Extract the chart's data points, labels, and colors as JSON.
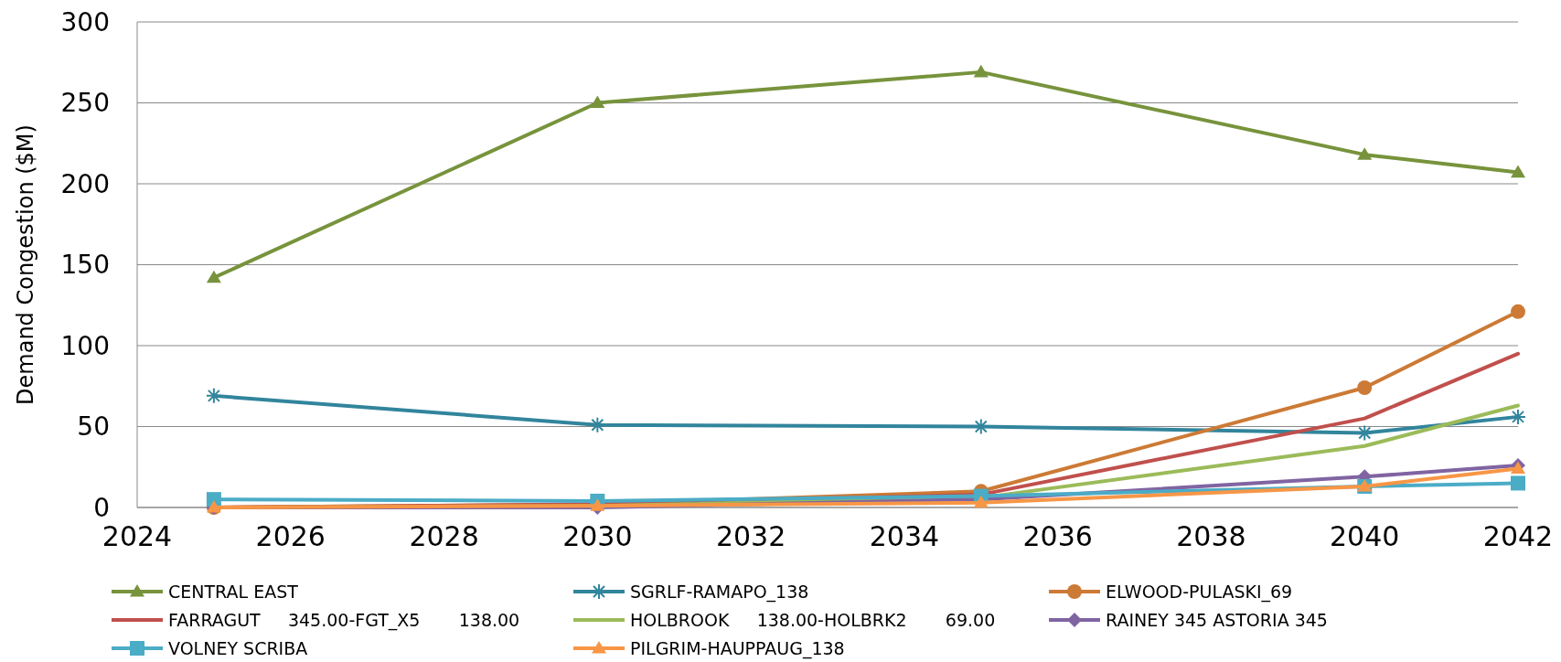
{
  "chart_data": {
    "type": "line",
    "ylabel": "Demand Congestion ($M)",
    "x": [
      2025,
      2030,
      2035,
      2040,
      2042
    ],
    "xlim": [
      2024,
      2042
    ],
    "xticks": [
      2024,
      2026,
      2028,
      2030,
      2032,
      2034,
      2036,
      2038,
      2040,
      2042
    ],
    "ylim": [
      0,
      300
    ],
    "yticks": [
      0,
      50,
      100,
      150,
      200,
      250,
      300
    ],
    "grid": "y",
    "legend": "bottom",
    "series": [
      {
        "name": "CENTRAL EAST",
        "color": "#77933c",
        "marker": "triangle",
        "values": [
          142,
          250,
          269,
          218,
          207
        ]
      },
      {
        "name": "SGRLF-RAMAPO_138",
        "color": "#31859c",
        "marker": "cross",
        "values": [
          69,
          51,
          50,
          46,
          56
        ]
      },
      {
        "name": "ELWOOD-PULASKI_69",
        "color": "#cc7a35",
        "marker": "circle",
        "values": [
          0,
          2,
          10,
          74,
          121
        ]
      },
      {
        "name": "FARRAGUT     345.00-FGT_X5       138.00",
        "color": "#c0504d",
        "marker": "none",
        "values": [
          0,
          2,
          8,
          55,
          95
        ]
      },
      {
        "name": "HOLBROOK     138.00-HOLBRK2       69.00",
        "color": "#9bbb59",
        "marker": "none",
        "values": [
          0,
          1,
          6,
          38,
          63
        ]
      },
      {
        "name": "RAINEY 345 ASTORIA 345",
        "color": "#8064a2",
        "marker": "diamond",
        "values": [
          0,
          0,
          5,
          19,
          26
        ]
      },
      {
        "name": "VOLNEY SCRIBA",
        "color": "#4bacc6",
        "marker": "square",
        "values": [
          5,
          4,
          7,
          13,
          15
        ]
      },
      {
        "name": "PILGRIM-HAUPPAUG_138",
        "color": "#f79646",
        "marker": "triangle",
        "values": [
          0,
          1,
          3,
          13,
          24
        ]
      }
    ]
  }
}
